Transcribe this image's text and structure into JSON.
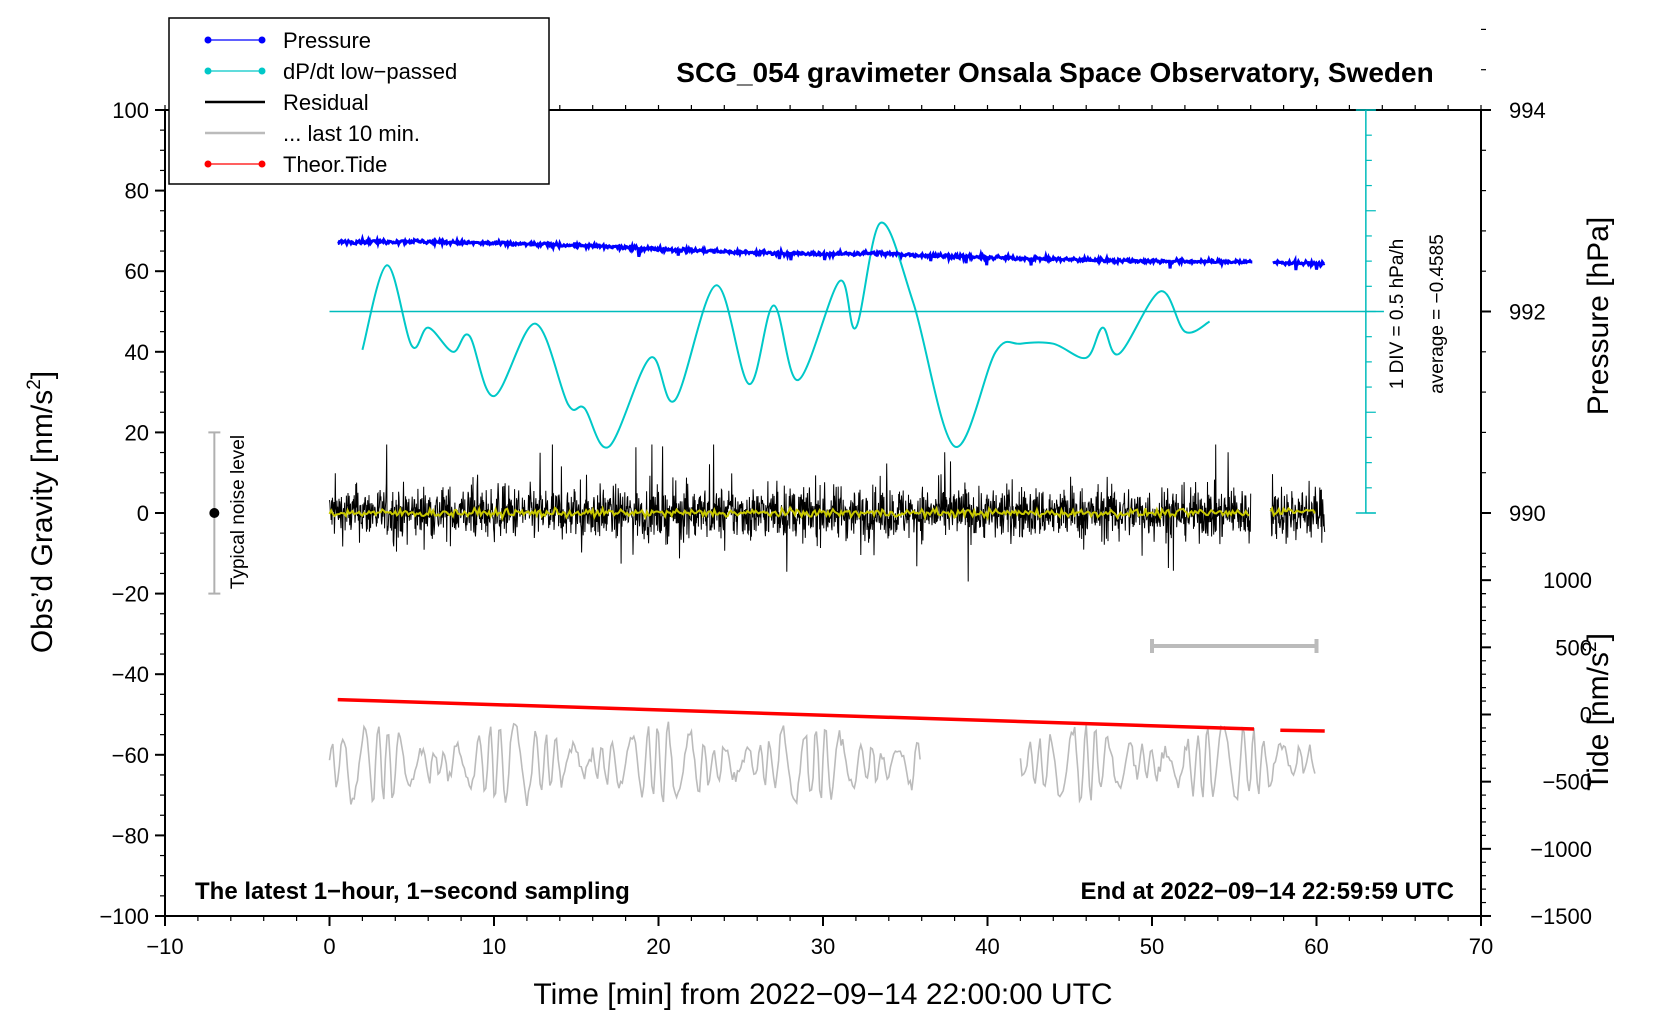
{
  "chart_data": {
    "type": "line",
    "title": "SCG_054 gravimeter Onsala Space Observatory, Sweden",
    "xlabel": "Time [min] from 2022−09−14 22:00:00 UTC",
    "xlim": [
      -10,
      70
    ],
    "x_ticks": [
      -10,
      0,
      10,
      20,
      30,
      40,
      50,
      60,
      70
    ],
    "x_tick_labels": [
      "−10",
      "0",
      "10",
      "20",
      "30",
      "40",
      "50",
      "60",
      "70"
    ],
    "left_axis": {
      "label_main": "Obs’d Gravity [nm/s",
      "label_sup": "2",
      "label_close": "]",
      "range": [
        -100,
        100
      ],
      "ticks": [
        -100,
        -80,
        -60,
        -40,
        -20,
        0,
        20,
        40,
        60,
        80,
        100
      ],
      "tick_labels": [
        "−100",
        "−80",
        "−60",
        "−40",
        "−20",
        "0",
        "20",
        "40",
        "60",
        "80",
        "100"
      ]
    },
    "right_pressure_axis": {
      "label": "Pressure [hPa]",
      "ticks": [
        990,
        992,
        994
      ],
      "tick_labels": [
        "990",
        "992",
        "994"
      ],
      "map": {
        "hpa_at_gravity_50": 992,
        "gravity_per_hpa": 25
      }
    },
    "right_tide_axis": {
      "label_main": "Tide [nm/s",
      "label_sup": "2",
      "label_close": "]",
      "ticks": [
        -1500,
        -1000,
        -500,
        0,
        500,
        1000
      ],
      "tick_labels": [
        "−1500",
        "−1000",
        "−500",
        "0",
        "500",
        "1000"
      ],
      "map": {
        "gravity_at_tide_0": -50,
        "gravity_per_unit": 0.03333
      }
    },
    "legend": {
      "position": "top-left",
      "entries": [
        {
          "label": "Pressure",
          "color": "#0000ff",
          "marker": true
        },
        {
          "label": "dP/dt low−passed",
          "color": "#00c8c8",
          "marker": true
        },
        {
          "label": "Residual",
          "color": "#000000",
          "marker": false
        },
        {
          "label": "... last 10 min.",
          "color": "#bbbbbb",
          "marker": false
        },
        {
          "label": "Theor.Tide",
          "color": "#ff0000",
          "marker": true
        }
      ]
    },
    "series": [
      {
        "name": "Pressure",
        "color": "#0000ff",
        "x": [
          0.5,
          5,
          10,
          15,
          20,
          25,
          30,
          33,
          35,
          40,
          45,
          50,
          56,
          57.5,
          60.5
        ],
        "y": [
          67.3,
          67.4,
          66.9,
          66.4,
          65.5,
          64.7,
          64.2,
          64.5,
          64.1,
          63.4,
          62.9,
          62.5,
          62.3,
          62.2,
          61.8
        ]
      },
      {
        "name": "dP/dt low−passed",
        "color": "#00c8c8",
        "x": [
          2,
          3.5,
          5,
          6,
          7.5,
          8.5,
          10,
          12.5,
          14.5,
          15.5,
          17,
          19.5,
          21,
          23.5,
          25.5,
          27,
          28.5,
          31,
          32,
          33.5,
          35.5,
          38,
          40.5,
          42,
          44,
          46,
          47,
          48,
          50.5,
          52,
          53.5
        ],
        "y": [
          40.5,
          61.5,
          41.5,
          46,
          40,
          44,
          29,
          47,
          27,
          26,
          16.5,
          38.5,
          28,
          56.5,
          32,
          51.5,
          33,
          57.5,
          46,
          72,
          52,
          16.5,
          40,
          42,
          42,
          38.5,
          46,
          39.5,
          55,
          45,
          47.5
        ]
      },
      {
        "name": "Residual",
        "color": "#000000",
        "x": [
          0,
          56,
          57.2,
          60.5
        ],
        "y": [
          0,
          0,
          0,
          0
        ],
        "typical_range": [
          -17,
          17
        ]
      },
      {
        "name": "Residual (smoothed)",
        "color": "#c8c800",
        "x": [
          0,
          56,
          57.2,
          60
        ],
        "y": [
          0,
          0,
          0.5,
          0.5
        ]
      },
      {
        "name": "... last 10 min.",
        "color": "#bbbbbb",
        "x": [
          0,
          36,
          42,
          60
        ],
        "y": [
          -62,
          -62,
          -62,
          -62
        ],
        "typical_range": [
          -75,
          -48
        ]
      },
      {
        "name": "Theor.Tide",
        "color": "#ff0000",
        "x": [
          0.5,
          56.2,
          57.8,
          60.5
        ],
        "y": [
          -46.3,
          -53.6,
          -53.9,
          -54.1
        ]
      }
    ],
    "annotations": {
      "noise_label": "Typical noise level",
      "noise_range": [
        -20,
        20
      ],
      "noise_x": -7,
      "dpdt_scale": "1 DIV = 0.5 hPa/h",
      "dpdt_average": "average = −0.4585",
      "dpdt_reference_y": 50,
      "dpdt_axis_x": 63,
      "dpdt_axis_range": [
        0,
        100
      ],
      "ten_min_bar": [
        50,
        60
      ],
      "ten_min_bar_y": -33,
      "bottom_left": "The latest 1−hour, 1−second sampling",
      "bottom_right": "End at 2022−09−14 22:59:59 UTC"
    }
  }
}
